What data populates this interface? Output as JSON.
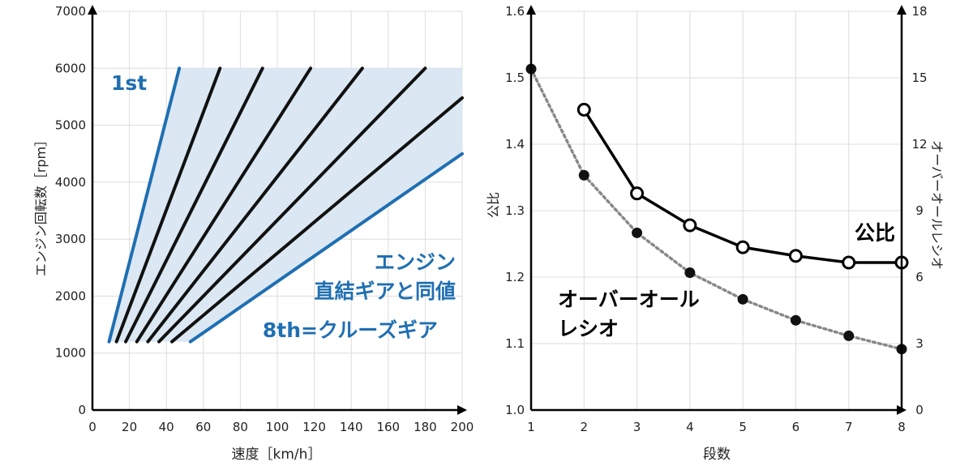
{
  "chart_data": [
    {
      "type": "line",
      "xlabel": "速度［km/h］",
      "ylabel": "エンジン回転数［rpm］",
      "xlim": [
        0,
        200
      ],
      "ylim": [
        0,
        7000
      ],
      "xticks": [
        "0",
        "20",
        "40",
        "60",
        "80",
        "100",
        "120",
        "140",
        "160",
        "180",
        "200"
      ],
      "yticks": [
        "0",
        "1000",
        "2000",
        "3000",
        "4000",
        "5000",
        "6000",
        "7000"
      ],
      "grid": true,
      "shaded_region": {
        "label": "エンジン直結ギアと同値",
        "color": "#dbe8f4",
        "polygon": [
          [
            9,
            1200
          ],
          [
            47,
            6000
          ],
          [
            200,
            6000
          ],
          [
            200,
            4500
          ],
          [
            53,
            1200
          ]
        ]
      },
      "series": [
        {
          "name": "1st",
          "color": "#1f6fb2",
          "x": [
            9,
            47
          ],
          "y": [
            1200,
            6000
          ]
        },
        {
          "name": "",
          "color": "#111111",
          "x": [
            13,
            69
          ],
          "y": [
            1200,
            6000
          ]
        },
        {
          "name": "",
          "color": "#111111",
          "x": [
            18,
            92
          ],
          "y": [
            1200,
            6000
          ]
        },
        {
          "name": "",
          "color": "#111111",
          "x": [
            24,
            118
          ],
          "y": [
            1200,
            6000
          ]
        },
        {
          "name": "",
          "color": "#111111",
          "x": [
            30,
            146
          ],
          "y": [
            1200,
            6000
          ]
        },
        {
          "name": "",
          "color": "#111111",
          "x": [
            36,
            180
          ],
          "y": [
            1200,
            6000
          ]
        },
        {
          "name": "",
          "color": "#111111",
          "x": [
            43,
            200
          ],
          "y": [
            1200,
            5480
          ]
        },
        {
          "name": "8th=クルーズギア",
          "color": "#1f6fb2",
          "x": [
            53,
            200
          ],
          "y": [
            1200,
            4500
          ]
        }
      ],
      "annotations": [
        {
          "text": "1st",
          "color": "#1f6fb2"
        },
        {
          "text": "エンジン",
          "color": "#1f6fb2"
        },
        {
          "text": "直結ギアと同値",
          "color": "#1f6fb2"
        },
        {
          "text": "8th=クルーズギア",
          "color": "#1f6fb2"
        }
      ]
    },
    {
      "type": "line",
      "xlabel": "段数",
      "ylabel": "公比",
      "y2label": "オーバーオールレシオ",
      "xlim": [
        1,
        8
      ],
      "ylim": [
        1.0,
        1.6
      ],
      "y2lim": [
        0,
        18
      ],
      "xticks": [
        "1",
        "2",
        "3",
        "4",
        "5",
        "6",
        "7",
        "8"
      ],
      "yticks": [
        "1.0",
        "1.1",
        "1.2",
        "1.3",
        "1.4",
        "1.5",
        "1.6"
      ],
      "y2ticks": [
        "0",
        "3",
        "6",
        "9",
        "12",
        "15",
        "18"
      ],
      "grid": true,
      "series": [
        {
          "name": "公比",
          "axis": "left",
          "style": "solid-open-markers",
          "color": "#000000",
          "x": [
            2,
            3,
            4,
            5,
            6,
            7,
            8
          ],
          "y": [
            1.452,
            1.326,
            1.278,
            1.245,
            1.232,
            1.222,
            1.222
          ]
        },
        {
          "name": "オーバーオールレシオ",
          "axis": "right",
          "style": "dotted-filled-markers",
          "color": "#888888",
          "x": [
            1,
            2,
            3,
            4,
            5,
            6,
            7,
            8
          ],
          "y": [
            15.4,
            10.6,
            8.0,
            6.2,
            5.0,
            4.05,
            3.35,
            2.75
          ]
        }
      ],
      "annotations": [
        {
          "text": "公比"
        },
        {
          "text": "オーバーオール"
        },
        {
          "text": "レシオ"
        }
      ]
    }
  ]
}
